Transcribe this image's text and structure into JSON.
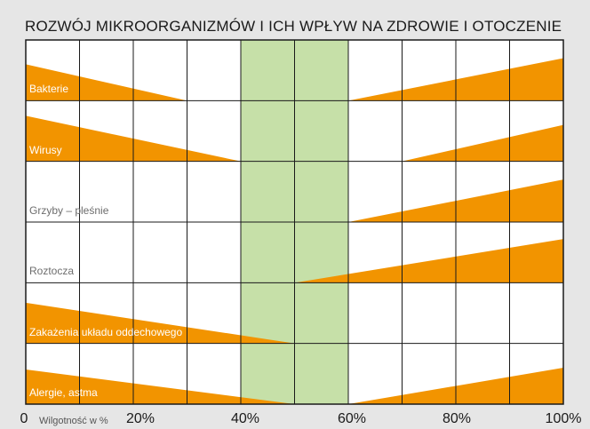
{
  "chart_data": {
    "type": "area",
    "title": "ROZWÓJ MIKROORGANIZMÓW I ICH WPŁYW NA ZDROWIE I OTOCZENIE",
    "xlabel": "Wilgotność w %",
    "xlim": [
      0,
      100
    ],
    "grid": true,
    "optimal_band": [
      40,
      60
    ],
    "x_ticks": [
      "0",
      "20%",
      "40%",
      "60%",
      "80%",
      "100%"
    ],
    "rows": [
      {
        "name": "Bakterie",
        "label_color": "#ffffff",
        "segments": [
          {
            "from": 0,
            "to": 30,
            "start_level": 0.6,
            "end_level": 0
          },
          {
            "from": 60,
            "to": 100,
            "start_level": 0,
            "end_level": 0.7
          }
        ]
      },
      {
        "name": "Wirusy",
        "label_color": "#ffffff",
        "segments": [
          {
            "from": 0,
            "to": 40,
            "start_level": 0.75,
            "end_level": 0
          },
          {
            "from": 70,
            "to": 100,
            "start_level": 0,
            "end_level": 0.6
          }
        ]
      },
      {
        "name": "Grzyby – pleśnie",
        "label_color": "#6d6d6d",
        "segments": [
          {
            "from": 60,
            "to": 100,
            "start_level": 0,
            "end_level": 0.7
          }
        ]
      },
      {
        "name": "Roztocza",
        "label_color": "#6d6d6d",
        "segments": [
          {
            "from": 50,
            "to": 100,
            "start_level": 0,
            "end_level": 0.72
          }
        ]
      },
      {
        "name": "Zakażenia układu oddechowego",
        "label_color": "#ffffff",
        "segments": [
          {
            "from": 0,
            "to": 50,
            "start_level": 0.67,
            "end_level": 0
          }
        ]
      },
      {
        "name": "Alergie, astma",
        "label_color": "#ffffff",
        "segments": [
          {
            "from": 0,
            "to": 50,
            "start_level": 0.57,
            "end_level": 0
          },
          {
            "from": 60,
            "to": 100,
            "start_level": 0,
            "end_level": 0.6
          }
        ]
      }
    ],
    "colors": {
      "fill": "#f29400",
      "band": "#c6e0a8",
      "grid": "#1a1a1a",
      "plot_bg": "#ffffff"
    }
  }
}
